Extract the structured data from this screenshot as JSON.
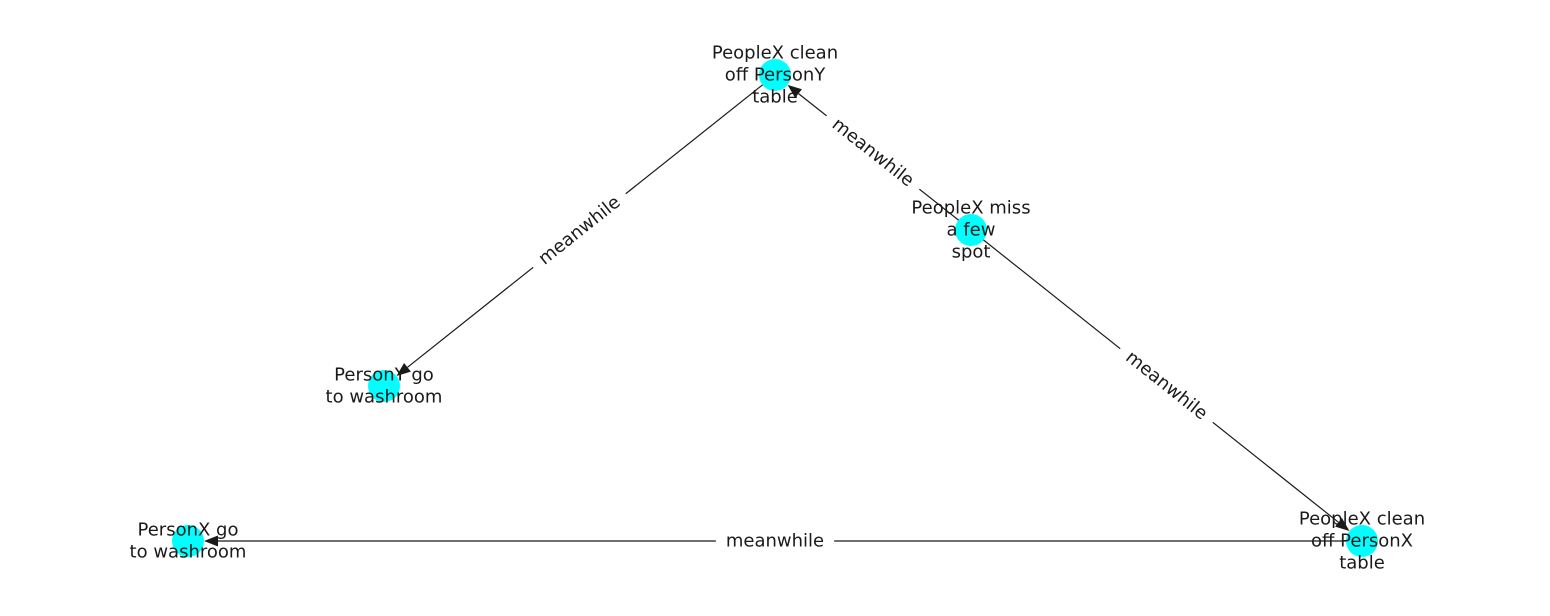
{
  "diagram": {
    "node_color": "#00ffff",
    "edge_color": "#1a1a1a",
    "nodes": [
      {
        "id": "n1",
        "label_lines": [
          "PeopleX clean",
          "off PersonY",
          "table"
        ]
      },
      {
        "id": "n2",
        "label_lines": [
          "PeopleX miss",
          "a few",
          "spot"
        ]
      },
      {
        "id": "n3",
        "label_lines": [
          "PersonY go",
          "to washroom"
        ]
      },
      {
        "id": "n4",
        "label_lines": [
          "PersonX go",
          "to washroom"
        ]
      },
      {
        "id": "n5",
        "label_lines": [
          "PeopleX clean",
          "off PersonX",
          "table"
        ]
      }
    ],
    "edges": [
      {
        "from": "n1",
        "to": "n3",
        "label": "meanwhile"
      },
      {
        "from": "n2",
        "to": "n1",
        "label": "meanwhile"
      },
      {
        "from": "n2",
        "to": "n5",
        "label": "meanwhile"
      },
      {
        "from": "n5",
        "to": "n4",
        "label": "meanwhile"
      }
    ]
  }
}
